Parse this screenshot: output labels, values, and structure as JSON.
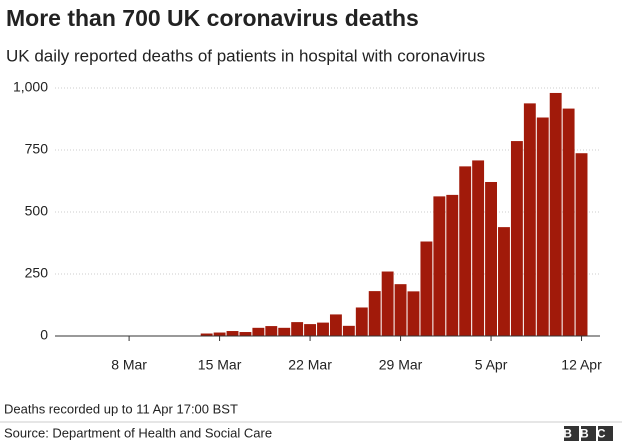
{
  "chart_data": {
    "type": "bar",
    "title": "More than 700 UK coronavirus deaths",
    "subtitle": "UK daily reported deaths of patients in hospital with coronavirus",
    "categories": [
      null,
      null,
      null,
      null,
      null,
      "8 Mar",
      null,
      null,
      null,
      null,
      null,
      null,
      "15 Mar",
      null,
      null,
      null,
      null,
      null,
      null,
      "22 Mar",
      null,
      null,
      null,
      null,
      null,
      null,
      "29 Mar",
      null,
      null,
      null,
      null,
      null,
      null,
      "5 Apr",
      null,
      null,
      null,
      null,
      null,
      null,
      "12 Apr"
    ],
    "values": [
      0,
      0,
      1,
      1,
      0,
      1,
      1,
      1,
      2,
      2,
      1,
      10,
      14,
      20,
      16,
      33,
      40,
      33,
      56,
      48,
      54,
      87,
      41,
      115,
      181,
      260,
      209,
      180,
      381,
      563,
      569,
      684,
      708,
      621,
      439,
      786,
      938,
      881,
      980,
      917,
      737
    ],
    "color": "#a11a0a",
    "ylim": [
      0,
      1000
    ],
    "yticks": [
      0,
      250,
      500,
      750,
      {
        "value": 1000,
        "label": "1,000"
      }
    ],
    "grid": true,
    "note": "Deaths recorded up to 11 Apr 17:00 BST",
    "source": "Source: Department of Health and Social Care",
    "logo": "BBC"
  }
}
